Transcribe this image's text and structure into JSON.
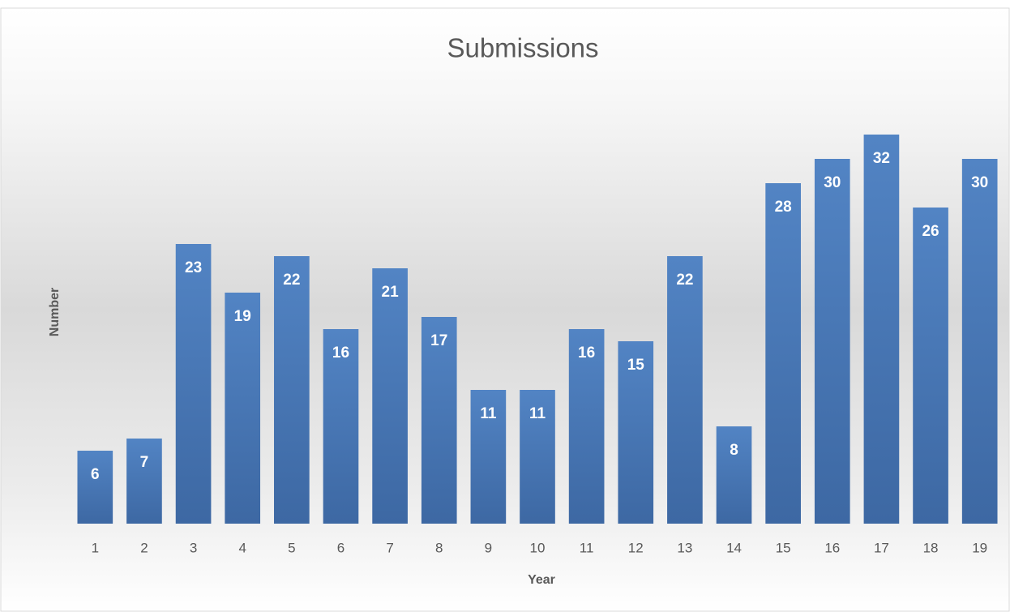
{
  "chart_data": {
    "type": "bar",
    "title": "Submissions",
    "x_label": "Year",
    "y_label": "Number",
    "categories": [
      "1",
      "2",
      "3",
      "4",
      "5",
      "6",
      "7",
      "8",
      "9",
      "10",
      "11",
      "12",
      "13",
      "14",
      "15",
      "16",
      "17",
      "18",
      "19"
    ],
    "values": [
      6,
      7,
      23,
      19,
      22,
      16,
      21,
      17,
      11,
      11,
      16,
      15,
      22,
      8,
      28,
      30,
      32,
      26,
      30
    ],
    "color": "#4a7ab8",
    "ylim": [
      0,
      35
    ],
    "data_labels": true
  }
}
